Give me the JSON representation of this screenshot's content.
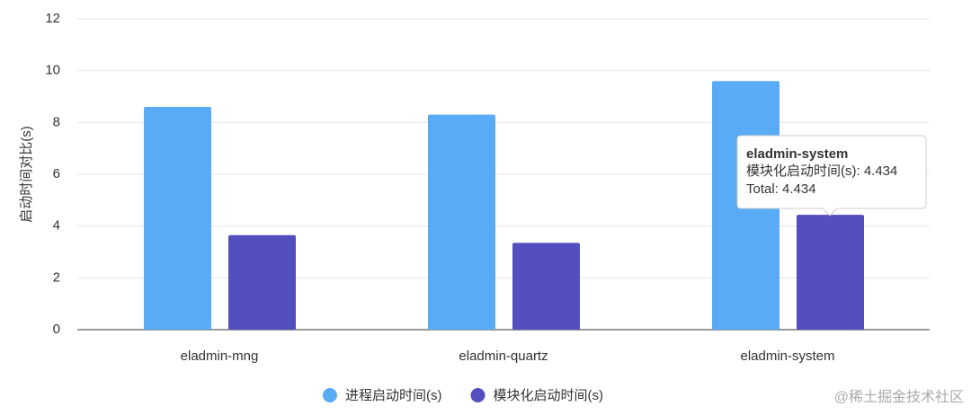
{
  "chart_data": {
    "type": "bar",
    "y_label": "启动时间对比(s)",
    "categories": [
      "eladmin-mng",
      "eladmin-quartz",
      "eladmin-system"
    ],
    "series": [
      {
        "name": "进程启动时间(s)",
        "color": "#5aabf5",
        "values": [
          8.6,
          8.3,
          9.6
        ]
      },
      {
        "name": "模块化启动时间(s)",
        "color": "#534fbf",
        "values": [
          3.65,
          3.35,
          4.434
        ]
      }
    ],
    "ylim": [
      0,
      12
    ],
    "yticks": [
      0,
      2,
      4,
      6,
      8,
      10,
      12
    ],
    "grid": true,
    "legend": "bottom",
    "tooltip": {
      "title": "eladmin-system",
      "lines": [
        "模块化启动时间(s): 4.434",
        "Total: 4.434"
      ]
    }
  },
  "watermark": "@稀土掘金技术社区"
}
